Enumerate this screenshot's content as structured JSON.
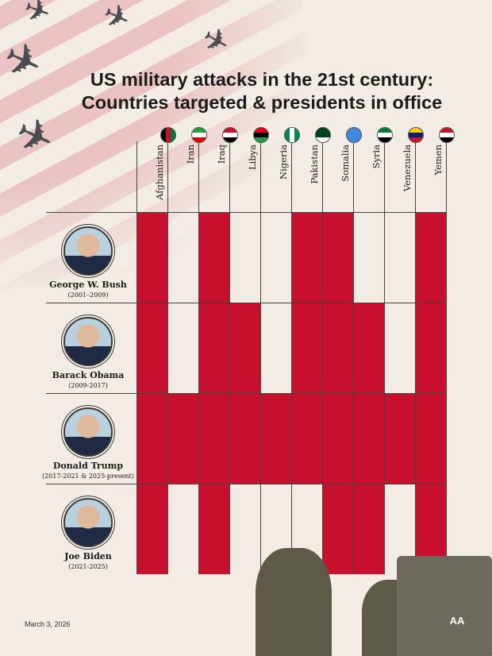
{
  "title_line1": "US military attacks in the 21st century:",
  "title_line2": "Countries targeted & presidents in office",
  "date": "March 3, 2026",
  "logo_text": "AA",
  "colors": {
    "attacked": "#c8102e",
    "background": "#f2ece4"
  },
  "chart_data": {
    "type": "heatmap",
    "title": "US military attacks in the 21st century: Countries targeted & presidents in office",
    "columns": [
      "Afghanistan",
      "Iran",
      "Iraq",
      "Libya",
      "Nigeria",
      "Pakistan",
      "Somalia",
      "Syria",
      "Venezuela",
      "Yemen"
    ],
    "rows": [
      {
        "name": "George W. Bush",
        "years": "(2001–2009)",
        "values": [
          1,
          0,
          1,
          0,
          0,
          1,
          1,
          0,
          0,
          1
        ]
      },
      {
        "name": "Barack Obama",
        "years": "(2009-2017)",
        "values": [
          1,
          0,
          1,
          1,
          0,
          1,
          1,
          1,
          0,
          1
        ]
      },
      {
        "name": "Donald Trump",
        "years": "(2017-2021 & 2025-present)",
        "values": [
          1,
          1,
          1,
          1,
          1,
          1,
          1,
          1,
          1,
          1
        ]
      },
      {
        "name": "Joe Biden",
        "years": "(2021-2025)",
        "values": [
          1,
          0,
          1,
          0,
          0,
          0,
          1,
          1,
          0,
          1
        ]
      }
    ]
  },
  "flags": [
    [
      "#000",
      "#c8102e",
      "#007a36"
    ],
    [
      "#239f40",
      "#fff",
      "#da0000"
    ],
    [
      "#ce1126",
      "#fff",
      "#000"
    ],
    [
      "#e70013",
      "#000",
      "#239e46"
    ],
    [
      "#008751",
      "#fff",
      "#008751"
    ],
    [
      "#01411c",
      "#01411c",
      "#fff"
    ],
    [
      "#4189dd",
      "#4189dd",
      "#4189dd"
    ],
    [
      "#007a3d",
      "#fff",
      "#000"
    ],
    [
      "#ffcc00",
      "#00247d",
      "#cf142b"
    ],
    [
      "#ce1126",
      "#fff",
      "#000"
    ]
  ]
}
